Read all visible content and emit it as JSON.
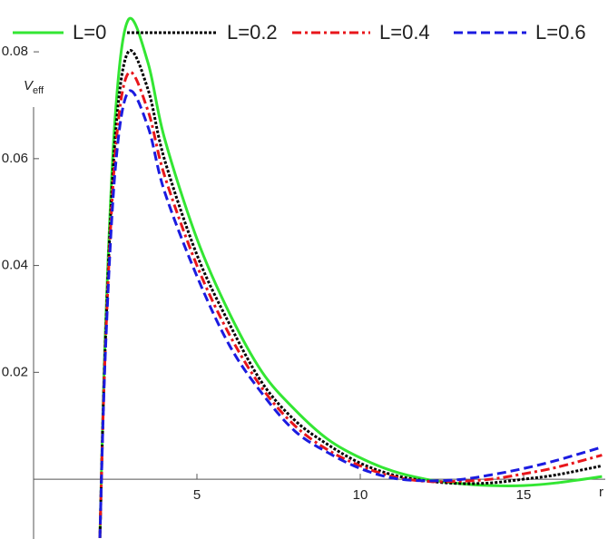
{
  "chart_data": {
    "type": "line",
    "y_label": {
      "main": "V",
      "sub": "eff"
    },
    "x_label": "r",
    "x": [
      2.03,
      2.2,
      2.5,
      2.9,
      3.5,
      4,
      5,
      6,
      7,
      8,
      9,
      10,
      11,
      12,
      13,
      14,
      15,
      16,
      17.4
    ],
    "series": [
      {
        "name": "L=0",
        "color": "#33e633",
        "dash": "none",
        "values": [
          -0.011,
          0.028,
          0.068,
          0.086,
          0.078,
          0.064,
          0.045,
          0.031,
          0.02,
          0.013,
          0.0075,
          0.004,
          0.0015,
          0.0,
          -0.0008,
          -0.0012,
          -0.0012,
          -0.0007,
          0.0005
        ]
      },
      {
        "name": "L=0.2",
        "color": "#000000",
        "dash": "3,2",
        "values": [
          -0.011,
          0.026,
          0.064,
          0.08,
          0.073,
          0.06,
          0.042,
          0.029,
          0.018,
          0.011,
          0.0065,
          0.003,
          0.0008,
          -0.0003,
          -0.0008,
          -0.0007,
          0.0,
          0.0008,
          0.0025
        ]
      },
      {
        "name": "L=0.4",
        "color": "#e8161b",
        "dash": "10,4,3,4",
        "values": [
          -0.011,
          0.025,
          0.061,
          0.076,
          0.069,
          0.057,
          0.04,
          0.027,
          0.017,
          0.01,
          0.0055,
          0.0025,
          0.0005,
          -0.0004,
          -0.0004,
          0.0,
          0.001,
          0.0022,
          0.0045
        ]
      },
      {
        "name": "L=0.6",
        "color": "#1b1be0",
        "dash": "10,5",
        "values": [
          -0.011,
          0.024,
          0.058,
          0.0725,
          0.066,
          0.054,
          0.038,
          0.025,
          0.016,
          0.009,
          0.005,
          0.002,
          0.0002,
          -0.0003,
          -0.0001,
          0.0008,
          0.002,
          0.0035,
          0.006
        ]
      }
    ],
    "xlim": [
      0,
      17.5
    ],
    "ylim": [
      -0.0112,
      0.0897
    ],
    "xticks": [
      5,
      10,
      15
    ],
    "yticks": [
      0.02,
      0.04,
      0.06,
      0.08
    ],
    "legend": "top"
  }
}
